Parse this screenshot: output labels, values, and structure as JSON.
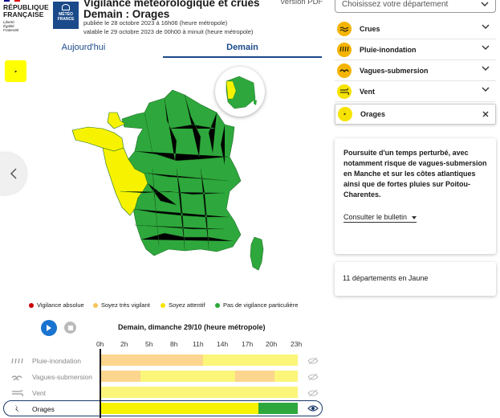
{
  "header": {
    "rf_lines": [
      "RÉPUBLIQUE",
      "FRANÇAISE"
    ],
    "rf_motto": [
      "Liberté",
      "Égalité",
      "Fraternité"
    ],
    "mf_logo": [
      "MÉTÉO",
      "FRANCE"
    ],
    "title_line1": "Vigilance météorologique et crues",
    "title_line2": "Demain : Orages",
    "published": "publiée le 28 octobre 2023 à 16h06 (heure métropole)",
    "valid": "valable le 29 octobre 2023 de 00h00 à minuit (heure métropole)",
    "pdf_label": "Version PDF"
  },
  "tabs": {
    "today": "Aujourd'hui",
    "tomorrow": "Demain",
    "active": "tomorrow"
  },
  "active_phenomenon_icon": "lightning-icon",
  "legend": [
    {
      "label": "Vigilance absolue",
      "color": "#cc0000"
    },
    {
      "label": "Soyez très vigilant",
      "color": "#f6c55a"
    },
    {
      "label": "Soyez attentif",
      "color": "#f7e300"
    },
    {
      "label": "Pas de vigilance particulière",
      "color": "#2ea83c"
    }
  ],
  "map_colors": {
    "green": "#2ea83c",
    "yellow": "#f7f300",
    "border": "#1d6e25"
  },
  "timeline": {
    "title": "Demain, dimanche 29/10 (heure métropole)",
    "hours": [
      "0h",
      "2h",
      "5h",
      "8h",
      "11h",
      "14h",
      "17h",
      "20h",
      "23h"
    ],
    "rows": [
      {
        "label": "Pluie-inondation",
        "icon": "rain-icon",
        "segments": [
          {
            "frac": 0.52,
            "color": "#fcd58e"
          },
          {
            "frac": 0.48,
            "color": "#fbf57a"
          }
        ]
      },
      {
        "label": "Vagues-submersion",
        "icon": "waves-icon",
        "segments": [
          {
            "frac": 0.2,
            "color": "#fcd58e"
          },
          {
            "frac": 0.48,
            "color": "#fbf57a"
          },
          {
            "frac": 0.2,
            "color": "#fcd58e"
          },
          {
            "frac": 0.12,
            "color": "#fbf57a"
          }
        ]
      },
      {
        "label": "Vent",
        "icon": "wind-icon",
        "segments": [
          {
            "frac": 1.0,
            "color": "#fbf57a"
          }
        ]
      },
      {
        "label": "Orages",
        "icon": "lightning-icon",
        "segments": [
          {
            "frac": 0.8,
            "color": "#f7f300"
          },
          {
            "frac": 0.2,
            "color": "#2ea83c"
          }
        ]
      }
    ]
  },
  "right": {
    "select_placeholder": "Choisissez votre département",
    "phenomena": [
      {
        "label": "Crues",
        "icon": "flood-icon"
      },
      {
        "label": "Pluie-inondation",
        "icon": "rain-icon"
      },
      {
        "label": "Vagues-submersion",
        "icon": "waves-icon"
      },
      {
        "label": "Vent",
        "icon": "wind-icon"
      },
      {
        "label": "Orages",
        "icon": "lightning-icon",
        "selected": true
      }
    ],
    "bulletin_text": "Poursuite d'un temps perturbé, avec notamment risque de vagues-submersion en Manche et sur les côtes atlantiques ainsi que de fortes pluies sur Poitou-Charentes.",
    "bulletin_link": "Consulter le bulletin",
    "count_text": "11 départements en Jaune"
  }
}
